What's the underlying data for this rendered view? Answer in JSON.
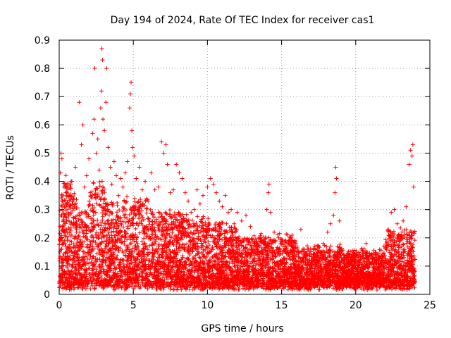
{
  "chart_data": {
    "type": "scatter",
    "title": "Day 194 of 2024, Rate Of TEC Index for receiver cas1",
    "xlabel": "GPS time / hours",
    "ylabel": "ROTI / TECUs",
    "xlim": [
      0,
      25
    ],
    "ylim": [
      0,
      0.9
    ],
    "x_ticks": [
      "0",
      "5",
      "10",
      "15",
      "20",
      "25"
    ],
    "y_ticks": [
      "0",
      "0.1",
      "0.2",
      "0.3",
      "0.4",
      "0.5",
      "0.6",
      "0.7",
      "0.8",
      "0.9"
    ],
    "grid": true,
    "marker": "plus",
    "color": "#ff0000",
    "series": [
      {
        "name": "",
        "points": [
          [
            0.05,
            0.15
          ],
          [
            0.08,
            0.43
          ],
          [
            0.12,
            0.5
          ],
          [
            0.18,
            0.48
          ],
          [
            0.25,
            0.33
          ],
          [
            0.32,
            0.22
          ],
          [
            0.4,
            0.38
          ],
          [
            0.5,
            0.26
          ],
          [
            0.6,
            0.29
          ],
          [
            0.7,
            0.35
          ],
          [
            0.85,
            0.4
          ],
          [
            1.0,
            0.31
          ],
          [
            1.1,
            0.45
          ],
          [
            1.2,
            0.28
          ],
          [
            1.35,
            0.68
          ],
          [
            1.5,
            0.53
          ],
          [
            1.6,
            0.6
          ],
          [
            1.7,
            0.38
          ],
          [
            1.85,
            0.42
          ],
          [
            2.0,
            0.48
          ],
          [
            2.1,
            0.36
          ],
          [
            2.25,
            0.57
          ],
          [
            2.35,
            0.62
          ],
          [
            2.4,
            0.8
          ],
          [
            2.5,
            0.5
          ],
          [
            2.6,
            0.55
          ],
          [
            2.7,
            0.44
          ],
          [
            2.8,
            0.66
          ],
          [
            2.85,
            0.72
          ],
          [
            2.88,
            0.87
          ],
          [
            2.92,
            0.83
          ],
          [
            2.95,
            0.62
          ],
          [
            3.05,
            0.58
          ],
          [
            3.15,
            0.68
          ],
          [
            3.2,
            0.8
          ],
          [
            3.3,
            0.52
          ],
          [
            3.45,
            0.45
          ],
          [
            3.55,
            0.39
          ],
          [
            3.7,
            0.47
          ],
          [
            3.85,
            0.42
          ],
          [
            4.0,
            0.35
          ],
          [
            4.15,
            0.41
          ],
          [
            4.3,
            0.38
          ],
          [
            4.45,
            0.43
          ],
          [
            4.6,
            0.47
          ],
          [
            4.75,
            0.66
          ],
          [
            4.8,
            0.71
          ],
          [
            4.85,
            0.75
          ],
          [
            4.9,
            0.58
          ],
          [
            4.95,
            0.52
          ],
          [
            5.05,
            0.49
          ],
          [
            5.2,
            0.41
          ],
          [
            5.4,
            0.45
          ],
          [
            5.6,
            0.37
          ],
          [
            5.8,
            0.4
          ],
          [
            6.0,
            0.33
          ],
          [
            6.2,
            0.43
          ],
          [
            6.45,
            0.37
          ],
          [
            6.7,
            0.38
          ],
          [
            6.9,
            0.54
          ],
          [
            7.05,
            0.5
          ],
          [
            7.2,
            0.53
          ],
          [
            7.3,
            0.46
          ],
          [
            7.5,
            0.36
          ],
          [
            7.7,
            0.37
          ],
          [
            7.9,
            0.46
          ],
          [
            8.1,
            0.43
          ],
          [
            8.3,
            0.41
          ],
          [
            8.5,
            0.36
          ],
          [
            8.7,
            0.33
          ],
          [
            8.9,
            0.29
          ],
          [
            9.1,
            0.3
          ],
          [
            9.3,
            0.37
          ],
          [
            9.5,
            0.32
          ],
          [
            9.7,
            0.35
          ],
          [
            10.0,
            0.38
          ],
          [
            10.2,
            0.41
          ],
          [
            10.4,
            0.39
          ],
          [
            10.6,
            0.36
          ],
          [
            10.8,
            0.33
          ],
          [
            11.0,
            0.31
          ],
          [
            11.2,
            0.35
          ],
          [
            11.4,
            0.29
          ],
          [
            11.6,
            0.3
          ],
          [
            11.8,
            0.25
          ],
          [
            12.0,
            0.29
          ],
          [
            12.3,
            0.26
          ],
          [
            12.6,
            0.28
          ],
          [
            12.9,
            0.24
          ],
          [
            13.2,
            0.18
          ],
          [
            13.5,
            0.2
          ],
          [
            13.8,
            0.19
          ],
          [
            14.0,
            0.3
          ],
          [
            14.1,
            0.36
          ],
          [
            14.15,
            0.39
          ],
          [
            14.25,
            0.29
          ],
          [
            14.5,
            0.22
          ],
          [
            14.8,
            0.2
          ],
          [
            15.0,
            0.18
          ],
          [
            15.3,
            0.17
          ],
          [
            15.6,
            0.2
          ],
          [
            15.9,
            0.19
          ],
          [
            16.3,
            0.23
          ],
          [
            16.6,
            0.13
          ],
          [
            16.9,
            0.1
          ],
          [
            17.2,
            0.14
          ],
          [
            17.5,
            0.13
          ],
          [
            17.8,
            0.18
          ],
          [
            18.1,
            0.22
          ],
          [
            18.3,
            0.25
          ],
          [
            18.5,
            0.28
          ],
          [
            18.6,
            0.36
          ],
          [
            18.65,
            0.45
          ],
          [
            18.7,
            0.41
          ],
          [
            18.9,
            0.26
          ],
          [
            19.2,
            0.14
          ],
          [
            19.5,
            0.13
          ],
          [
            19.8,
            0.12
          ],
          [
            20.1,
            0.13
          ],
          [
            20.4,
            0.16
          ],
          [
            20.7,
            0.18
          ],
          [
            21.0,
            0.14
          ],
          [
            21.3,
            0.12
          ],
          [
            21.6,
            0.13
          ],
          [
            21.9,
            0.17
          ],
          [
            22.2,
            0.23
          ],
          [
            22.4,
            0.29
          ],
          [
            22.6,
            0.3
          ],
          [
            22.8,
            0.25
          ],
          [
            23.0,
            0.19
          ],
          [
            23.2,
            0.26
          ],
          [
            23.4,
            0.31
          ],
          [
            23.6,
            0.46
          ],
          [
            23.7,
            0.51
          ],
          [
            23.8,
            0.49
          ],
          [
            23.85,
            0.53
          ],
          [
            23.9,
            0.38
          ]
        ]
      }
    ]
  }
}
